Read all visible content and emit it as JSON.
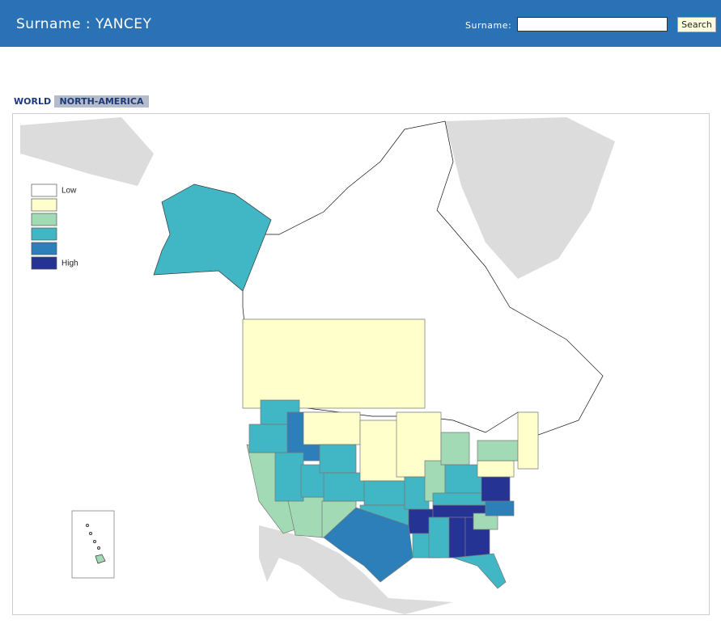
{
  "header": {
    "title": "Surname : YANCEY",
    "search_label": "Surname:",
    "search_button": "Search"
  },
  "tabs": [
    "WORLD",
    "NORTH-AMERICA"
  ],
  "legend": {
    "low": "Low",
    "high": "High"
  }
}
